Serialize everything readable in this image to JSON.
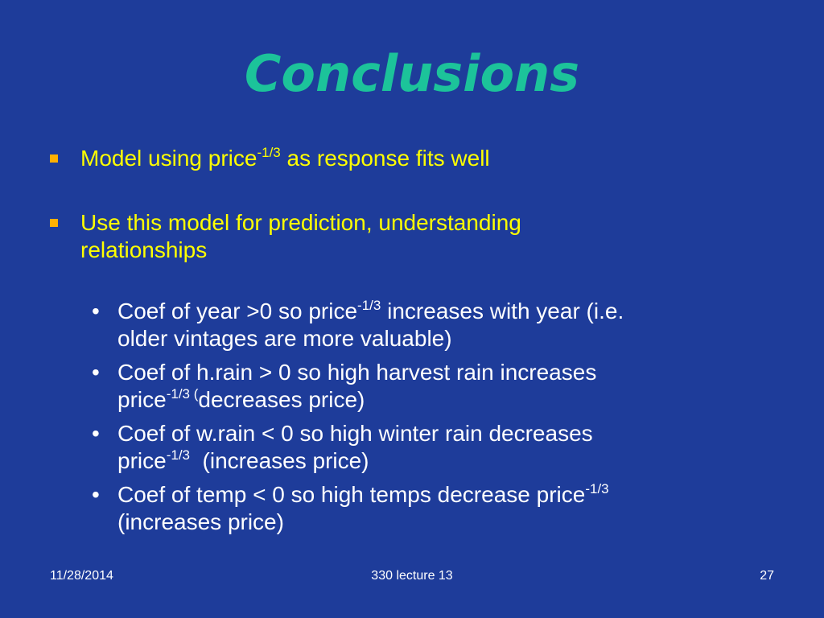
{
  "slide": {
    "title": "Conclusions",
    "bullets": [
      {
        "pre": "Model using price",
        "sup": "-1/3",
        "post": " as response fits well"
      },
      {
        "line1": "Use this model for prediction, understanding",
        "line2": "relationships"
      }
    ],
    "sub_bullets": [
      {
        "marker": "•",
        "l1_pre": "Coef of year >0 so price",
        "l1_sup": "-1/3",
        "l1_post": " increases with year (i.e.",
        "l2": "older vintages are more valuable)"
      },
      {
        "marker": "•",
        "l1": "Coef of h.rain > 0 so high harvest rain increases",
        "l2_pre": "price",
        "l2_sup": "-1/3 (",
        "l2_post": "decreases price)"
      },
      {
        "marker": "•",
        "l1": "Coef of w.rain < 0 so high winter rain decreases",
        "l2_pre": "price",
        "l2_sup": "-1/3",
        "l2_post": "  (increases price)"
      },
      {
        "marker": "•",
        "l1_pre": "Coef of temp < 0 so high temps decrease price",
        "l1_sup": "-1/3",
        "l2": "(increases price)"
      }
    ],
    "footer": {
      "date": "11/28/2014",
      "center": "330 lecture 13",
      "page": "27"
    },
    "colors": {
      "background": "#1e3c9a",
      "title": "#1cc39a",
      "bullet_text": "#ffff00",
      "bullet_marker": "#ffb000",
      "sub_text": "#ffffff"
    }
  }
}
